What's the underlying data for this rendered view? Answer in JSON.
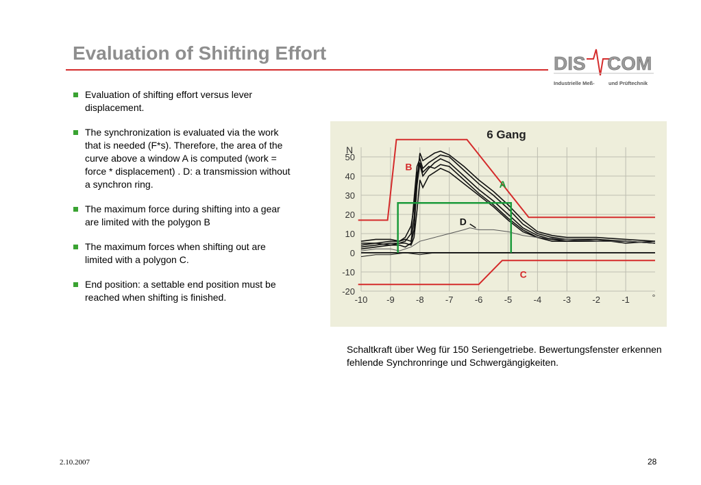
{
  "slide": {
    "title": "Evaluation of Shifting Effort",
    "bullets": [
      "Evaluation of shifting effort versus lever displacement.",
      "The synchronization is evaluated via the work that is needed (F*s). Therefore, the area of the curve above a window A is computed (work = force * displacement) . D: a transmission without a synchron ring.",
      "The maximum force during shifting into a gear are limited with the polygon B",
      "The maximum forces when shifting out are limited with a polygon C.",
      "End position: a settable end position must be reached when shifting is finished."
    ],
    "caption": "Schaltkraft über Weg für 150 Seriengetriebe. Bewertungsfenster erkennen fehlende Synchronringe und Schwergängigkeiten.",
    "date": "2.10.2007",
    "page_number": "28"
  },
  "logo": {
    "left_text": "DIS",
    "right_text": "COM",
    "tagline_left": "Industrielle Meß-",
    "tagline_right": "und Prüftechnik"
  },
  "colors": {
    "title": "#8e8e8e",
    "accent_red": "#d42a2a",
    "bullet_green": "#3aa332",
    "window_green": "#1a9a3a",
    "chart_bg": "#eeeedb"
  },
  "chart_data": {
    "type": "line",
    "title": "6 Gang",
    "y_unit": "N",
    "x_unit": "°",
    "xlim": [
      -10,
      0
    ],
    "ylim": [
      -20,
      55
    ],
    "x_ticks": [
      "-10",
      "-9",
      "-8",
      "-7",
      "-6",
      "-5",
      "-4",
      "-3",
      "-2",
      "-1"
    ],
    "y_ticks": [
      "50",
      "40",
      "30",
      "20",
      "10",
      "0",
      "-10",
      "-20"
    ],
    "grid": true,
    "polygon_B": {
      "label": "B",
      "x": [
        -10.1,
        -9.1,
        -8.8,
        -6.4,
        -4.3,
        0
      ],
      "y": [
        17,
        17,
        59,
        59,
        18.5,
        18.5
      ]
    },
    "polygon_C": {
      "label": "C",
      "x": [
        -10.1,
        -6.0,
        -5.2,
        0
      ],
      "y": [
        -16.5,
        -16.5,
        -4,
        -4
      ]
    },
    "window_A": {
      "label": "A",
      "x": [
        -8.75,
        -8.75,
        -4.9,
        -4.9
      ],
      "y": [
        0,
        26,
        26,
        0
      ]
    },
    "annotation_D": {
      "label": "D",
      "x": -6.65,
      "y": 14.5
    },
    "series": [
      {
        "x": [
          -10,
          -9.5,
          -9,
          -8.7,
          -8.5,
          -8.3,
          -8.2,
          -8.1,
          -8.0,
          -7.9,
          -7.7,
          -7.5,
          -7.3,
          -7.0,
          -6.5,
          -6.0,
          -5.5,
          -5.0,
          -4.5,
          -4.0,
          -3.5,
          -3.0,
          -2.0,
          -1.0,
          0
        ],
        "y": [
          3,
          4,
          5,
          5,
          6,
          10,
          28,
          45,
          49,
          44,
          47,
          49,
          51,
          50,
          43,
          36,
          30,
          23,
          15,
          10,
          8,
          7,
          7,
          6,
          5
        ]
      },
      {
        "x": [
          -10,
          -9.5,
          -9,
          -8.7,
          -8.5,
          -8.3,
          -8.2,
          -8.1,
          -8.0,
          -7.9,
          -7.7,
          -7.5,
          -7.3,
          -7.0,
          -6.5,
          -6.0,
          -5.5,
          -5.0,
          -4.5,
          -4.0,
          -3.5,
          -3.0,
          -2.0,
          -1.0,
          0
        ],
        "y": [
          6,
          7,
          7,
          6,
          8,
          14,
          24,
          41,
          46,
          40,
          44,
          47,
          49,
          47,
          40,
          33,
          27,
          20,
          13,
          9,
          7,
          7,
          6,
          6,
          5
        ]
      },
      {
        "x": [
          -10,
          -9.5,
          -9,
          -8.7,
          -8.5,
          -8.3,
          -8.2,
          -8.1,
          -8.0,
          -7.9,
          -7.7,
          -7.5,
          -7.3,
          -7.0,
          -6.5,
          -6.0,
          -5.5,
          -5.0,
          -4.5,
          -4.0,
          -3.5,
          -3.0,
          -2.0,
          -1.0,
          0
        ],
        "y": [
          2,
          3,
          4,
          4,
          3,
          5,
          12,
          35,
          47,
          42,
          45,
          44,
          46,
          45,
          38,
          31,
          25,
          18,
          12,
          8,
          6,
          6,
          7,
          5,
          6
        ]
      },
      {
        "x": [
          -10,
          -9.5,
          -9,
          -8.7,
          -8.5,
          -8.3,
          -8.2,
          -8.1,
          -8.0,
          -7.9,
          -7.7,
          -7.5,
          -7.3,
          -7.0,
          -6.5,
          -6.0,
          -5.5,
          -5.0,
          -4.5,
          -4.0,
          -3.5,
          -3.0,
          -2.0,
          -1.0,
          0
        ],
        "y": [
          5,
          5,
          6,
          6,
          7,
          6,
          18,
          38,
          52,
          48,
          50,
          52,
          53,
          51,
          45,
          38,
          32,
          25,
          17,
          11,
          9,
          8,
          8,
          7,
          6
        ]
      },
      {
        "x": [
          -10,
          -9.5,
          -9,
          -8.7,
          -8.5,
          -8.3,
          -8.2,
          -8.1,
          -8.0,
          -7.9,
          -7.7,
          -7.5,
          -7.3,
          -7.0,
          -6.5,
          -6.0,
          -5.5,
          -5.0,
          -4.5,
          -4.0,
          -3.5,
          -3.0,
          -2.0,
          -1.0,
          0
        ],
        "y": [
          4,
          5,
          4,
          5,
          5,
          4,
          8,
          22,
          38,
          34,
          40,
          42,
          44,
          42,
          36,
          30,
          24,
          17,
          11,
          8,
          7,
          6,
          6,
          6,
          5
        ]
      },
      {
        "x": [
          -10,
          -9.5,
          -9,
          -8.7,
          -8.5,
          -8.3,
          -8.0,
          -7.5,
          -7.0,
          -6.5,
          -6.3,
          -6.0,
          -5.5,
          -5.0,
          -4.5,
          -4.0,
          -3.0,
          -2.0,
          -1.0,
          0
        ],
        "y": [
          1,
          2,
          2,
          1,
          2,
          3,
          6,
          8,
          10,
          12,
          13,
          12,
          12,
          11,
          9,
          8,
          7,
          6,
          6,
          5
        ]
      },
      {
        "x": [
          -10,
          -9.5,
          -9,
          -8.5,
          -8.0,
          -7.5,
          -7.0,
          -6.5,
          -6.0,
          -5.5,
          -5.0,
          -4.8
        ],
        "y": [
          -2,
          -1,
          -1,
          0,
          -1,
          0,
          0,
          0,
          0,
          0,
          0,
          0
        ]
      }
    ]
  }
}
